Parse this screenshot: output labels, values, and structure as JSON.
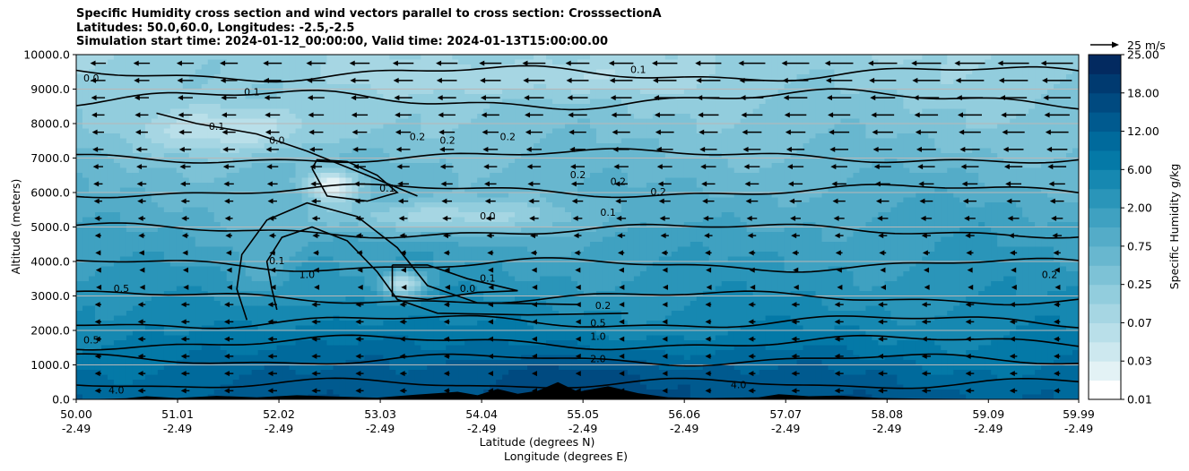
{
  "chart_data": {
    "type": "heatmap",
    "title_lines": [
      "Specific Humidity cross section and wind vectors parallel to cross section: CrosssectionA",
      "Latitudes: 50.0,60.0, Longitudes: -2.5,-2.5",
      "Simulation start time: 2024-01-12_00:00:00, Valid time: 2024-01-13T15:00:00.00"
    ],
    "xlabel_lat": "Latitude (degrees N)",
    "xlabel_lon": "Longitude (degrees E)",
    "ylabel": "Altitude (meters)",
    "xlim": [
      50.0,
      59.99
    ],
    "ylim": [
      0,
      10000
    ],
    "x_ticks": [
      {
        "lat": "50.00",
        "lon": "-2.49"
      },
      {
        "lat": "51.01",
        "lon": "-2.49"
      },
      {
        "lat": "52.02",
        "lon": "-2.49"
      },
      {
        "lat": "53.03",
        "lon": "-2.49"
      },
      {
        "lat": "54.04",
        "lon": "-2.49"
      },
      {
        "lat": "55.05",
        "lon": "-2.49"
      },
      {
        "lat": "56.06",
        "lon": "-2.49"
      },
      {
        "lat": "57.07",
        "lon": "-2.49"
      },
      {
        "lat": "58.08",
        "lon": "-2.49"
      },
      {
        "lat": "59.09",
        "lon": "-2.49"
      },
      {
        "lat": "59.99",
        "lon": "-2.49"
      }
    ],
    "y_ticks": [
      "0.0",
      "1000.0",
      "2000.0",
      "3000.0",
      "4000.0",
      "5000.0",
      "6000.0",
      "7000.0",
      "8000.0",
      "9000.0",
      "10000.0"
    ],
    "y_grid": true,
    "colorbar": {
      "label": "Specific Humidity g/kg",
      "levels": [
        "0.01",
        "0.03",
        "0.07",
        "0.25",
        "0.75",
        "2.00",
        "6.00",
        "12.00",
        "18.00",
        "25.00"
      ],
      "n_bins": 18,
      "colors": [
        "#ffffff",
        "#e3f2f5",
        "#cde8ef",
        "#b9dfe9",
        "#a6d6e3",
        "#92cddd",
        "#7dc2d6",
        "#68b7cf",
        "#54acc8",
        "#3fa1c1",
        "#2a95b9",
        "#1688b1",
        "#0479a7",
        "#006a9c",
        "#005a8f",
        "#004a80",
        "#003a70",
        "#032a60"
      ]
    },
    "quiver_key": {
      "label": "25 m/s",
      "value": 25
    },
    "contour_levels": [
      "0.0",
      "0.1",
      "0.2",
      "0.5",
      "1.0",
      "2.0",
      "4.0"
    ],
    "contour_labels": [
      {
        "text": "0.1",
        "lat": 55.6,
        "alt": 9550
      },
      {
        "text": "0.0",
        "lat": 50.15,
        "alt": 9300
      },
      {
        "text": "0.1",
        "lat": 51.75,
        "alt": 8900
      },
      {
        "text": "0.1",
        "lat": 51.4,
        "alt": 7900
      },
      {
        "text": "0.0",
        "lat": 52.0,
        "alt": 7500
      },
      {
        "text": "0.2",
        "lat": 53.4,
        "alt": 7600
      },
      {
        "text": "0.2",
        "lat": 53.7,
        "alt": 7500
      },
      {
        "text": "0.2",
        "lat": 54.3,
        "alt": 7600
      },
      {
        "text": "0.2",
        "lat": 55.0,
        "alt": 6500
      },
      {
        "text": "0.2",
        "lat": 55.4,
        "alt": 6300
      },
      {
        "text": "0.2",
        "lat": 55.8,
        "alt": 6000
      },
      {
        "text": "0.1",
        "lat": 53.1,
        "alt": 6100
      },
      {
        "text": "0.0",
        "lat": 54.1,
        "alt": 5300
      },
      {
        "text": "0.1",
        "lat": 55.3,
        "alt": 5400
      },
      {
        "text": "0.1",
        "lat": 54.1,
        "alt": 3500
      },
      {
        "text": "0.0",
        "lat": 53.9,
        "alt": 3200
      },
      {
        "text": "0.1",
        "lat": 52.0,
        "alt": 4000
      },
      {
        "text": "1.0",
        "lat": 52.3,
        "alt": 3600
      },
      {
        "text": "0.5",
        "lat": 50.45,
        "alt": 3200
      },
      {
        "text": "0.2",
        "lat": 55.25,
        "alt": 2700
      },
      {
        "text": "0.5",
        "lat": 55.2,
        "alt": 2200
      },
      {
        "text": "1.0",
        "lat": 55.2,
        "alt": 1800
      },
      {
        "text": "2.0",
        "lat": 55.2,
        "alt": 1150
      },
      {
        "text": "0.5",
        "lat": 50.15,
        "alt": 1700
      },
      {
        "text": "4.0",
        "lat": 50.4,
        "alt": 250
      },
      {
        "text": "4.0",
        "lat": 56.6,
        "alt": 400
      },
      {
        "text": "0.2",
        "lat": 59.7,
        "alt": 3600
      }
    ]
  }
}
